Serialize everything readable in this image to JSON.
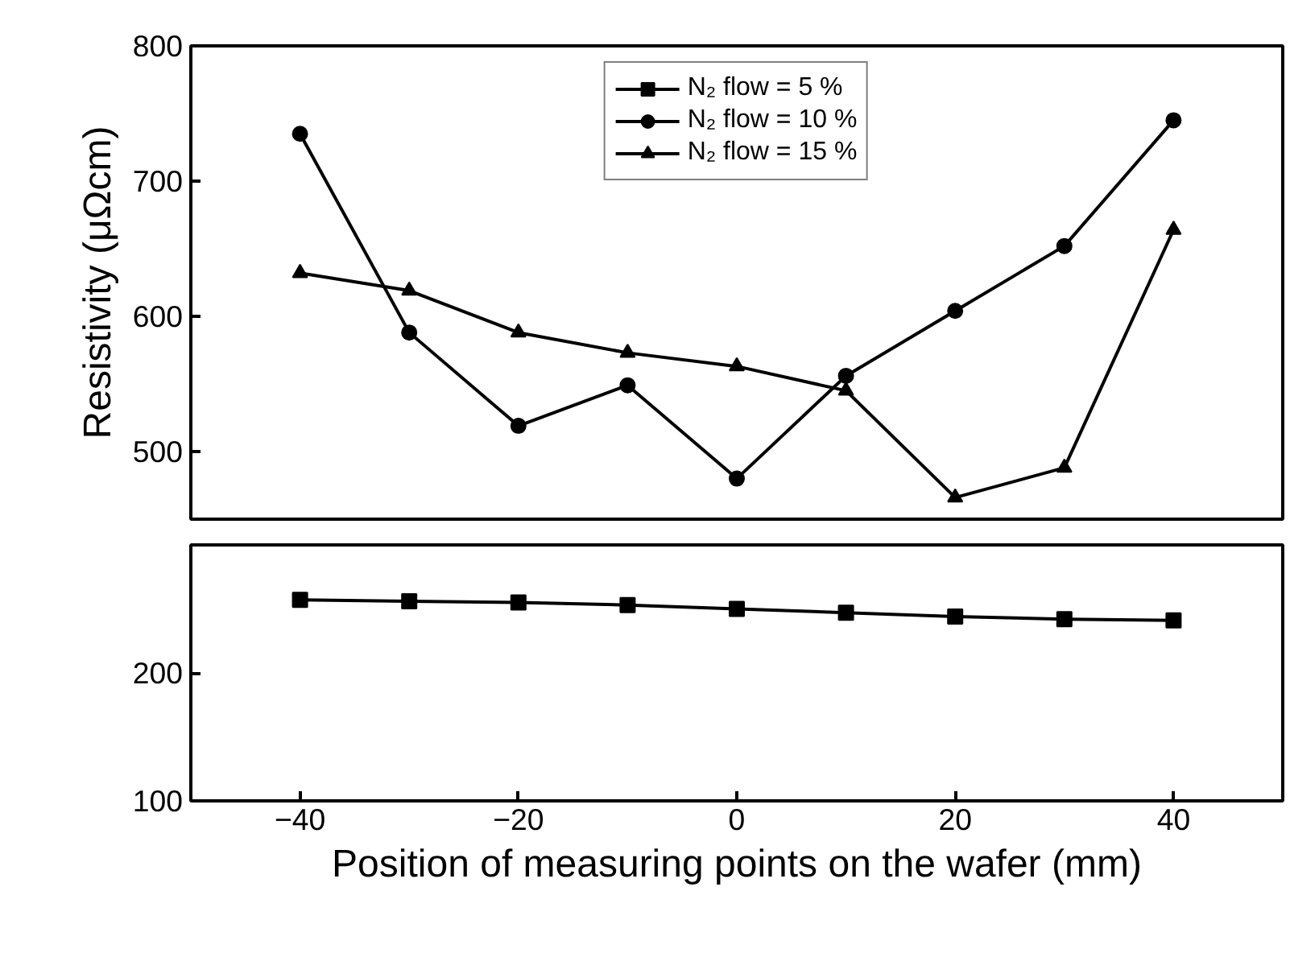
{
  "chart_data": [
    {
      "type": "line",
      "ylabel": "Resistivity (μΩcm)",
      "x": [
        -40,
        -30,
        -20,
        -10,
        0,
        10,
        20,
        30,
        40
      ],
      "xlim": [
        -50,
        50
      ],
      "ylim": [
        450,
        800
      ],
      "yticks": [
        500,
        600,
        700,
        800
      ],
      "tick_labels": "y",
      "legend": "top",
      "grid": false,
      "series": [
        {
          "name": "N₂ flow = 10 %",
          "color": "#000000",
          "marker": "circle",
          "values": [
            735,
            588,
            519,
            549,
            480,
            556,
            604,
            652,
            745
          ]
        },
        {
          "name": "N₂ flow = 15 %",
          "color": "#000000",
          "marker": "triangle",
          "values": [
            632,
            619,
            588,
            573,
            563,
            545,
            466,
            488,
            664
          ]
        }
      ]
    },
    {
      "type": "line",
      "xlabel": "Position of measuring points on the wafer (mm)",
      "x": [
        -40,
        -30,
        -20,
        -10,
        0,
        10,
        20,
        30,
        40
      ],
      "xlim": [
        -50,
        50
      ],
      "xticks": [
        -40,
        -20,
        0,
        20,
        40
      ],
      "ylim": [
        100,
        300
      ],
      "yticks": [
        100,
        200
      ],
      "grid": false,
      "series": [
        {
          "name": "N₂ flow = 5 %",
          "color": "#000000",
          "marker": "square",
          "values": [
            257,
            256,
            255,
            253,
            250,
            247,
            244,
            242,
            241
          ]
        }
      ]
    }
  ]
}
